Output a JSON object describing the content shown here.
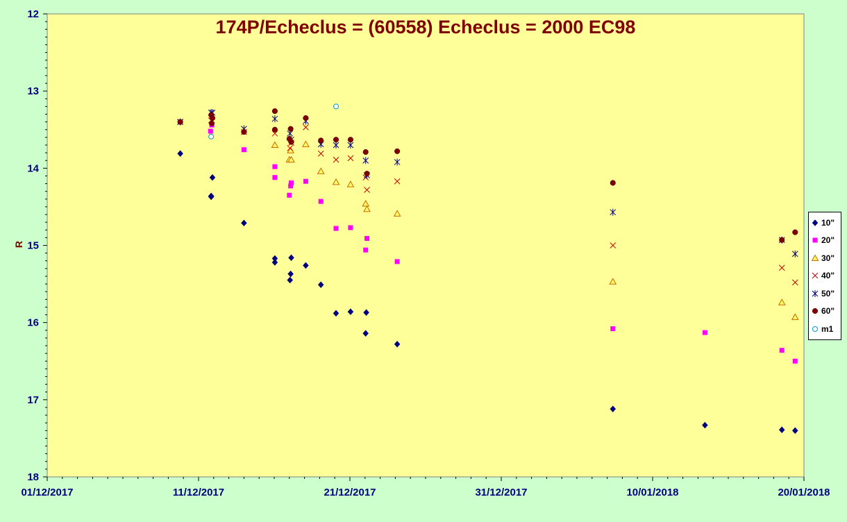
{
  "chart_data": {
    "type": "scatter",
    "title": "174P/Echeclus = (60558) Echeclus = 2000 EC98",
    "xlabel": "",
    "ylabel": "R",
    "x_axis": {
      "type": "date",
      "min": "2017-12-01",
      "max": "2018-01-20",
      "ticks": [
        "01/12/2017",
        "11/12/2017",
        "21/12/2017",
        "31/12/2017",
        "10/01/2018",
        "20/01/2018"
      ]
    },
    "y_axis": {
      "min": 12,
      "max": 18,
      "reversed": true,
      "ticks": [
        "12",
        "13",
        "14",
        "15",
        "16",
        "17",
        "18"
      ]
    },
    "grid": false,
    "legend_position": "right",
    "colors": {
      "plot_background": "#ffff99",
      "chart_background": "#ccffcc",
      "title": "#800000",
      "axis_text": "#000080"
    },
    "series": [
      {
        "name": "10\"",
        "marker": "diamond",
        "color": "#000080",
        "points": [
          [
            "2017-12-09 19:00",
            13.81
          ],
          [
            "2017-12-11 20:00",
            14.37
          ],
          [
            "2017-12-11 20:00",
            14.36
          ],
          [
            "2017-12-11 22:00",
            14.12
          ],
          [
            "2017-12-14 00:00",
            14.71
          ],
          [
            "2017-12-16 01:00",
            15.17
          ],
          [
            "2017-12-16 01:00",
            15.22
          ],
          [
            "2017-12-17 01:00",
            15.45
          ],
          [
            "2017-12-17 02:00",
            15.37
          ],
          [
            "2017-12-17 03:00",
            15.16
          ],
          [
            "2017-12-18 02:00",
            15.26
          ],
          [
            "2017-12-19 02:00",
            15.51
          ],
          [
            "2017-12-20 02:00",
            15.88
          ],
          [
            "2017-12-21 01:00",
            15.86
          ],
          [
            "2017-12-22 01:00",
            16.14
          ],
          [
            "2017-12-22 02:00",
            15.87
          ],
          [
            "2017-12-24 03:00",
            16.28
          ],
          [
            "2018-01-07 09:00",
            17.12
          ],
          [
            "2018-01-13 11:00",
            17.33
          ],
          [
            "2018-01-18 13:00",
            17.39
          ],
          [
            "2018-01-19 10:00",
            17.4
          ]
        ]
      },
      {
        "name": "20\"",
        "marker": "square",
        "color": "#ff00ff",
        "points": [
          [
            "2017-12-11 19:00",
            13.52
          ],
          [
            "2017-12-11 21:00",
            13.44
          ],
          [
            "2017-12-14 00:00",
            13.76
          ],
          [
            "2017-12-16 01:00",
            13.98
          ],
          [
            "2017-12-16 01:00",
            14.12
          ],
          [
            "2017-12-17 00:00",
            14.35
          ],
          [
            "2017-12-17 02:00",
            14.23
          ],
          [
            "2017-12-17 03:00",
            14.19
          ],
          [
            "2017-12-18 02:00",
            14.17
          ],
          [
            "2017-12-19 02:00",
            14.43
          ],
          [
            "2017-12-20 02:00",
            14.78
          ],
          [
            "2017-12-21 01:00",
            14.77
          ],
          [
            "2017-12-22 01:00",
            15.06
          ],
          [
            "2017-12-22 03:00",
            14.91
          ],
          [
            "2017-12-24 03:00",
            15.21
          ],
          [
            "2018-01-07 09:00",
            16.08
          ],
          [
            "2018-01-13 11:00",
            16.13
          ],
          [
            "2018-01-18 13:00",
            16.36
          ],
          [
            "2018-01-19 10:00",
            16.5
          ]
        ]
      },
      {
        "name": "30\"",
        "marker": "triangle",
        "color": "#ff9900",
        "points": [
          [
            "2017-12-16 01:00",
            13.7
          ],
          [
            "2017-12-17 00:00",
            13.89
          ],
          [
            "2017-12-17 02:00",
            13.77
          ],
          [
            "2017-12-17 03:00",
            13.89
          ],
          [
            "2017-12-18 02:00",
            13.69
          ],
          [
            "2017-12-19 02:00",
            14.04
          ],
          [
            "2017-12-20 02:00",
            14.18
          ],
          [
            "2017-12-21 01:00",
            14.21
          ],
          [
            "2017-12-22 01:00",
            14.46
          ],
          [
            "2017-12-22 03:00",
            14.53
          ],
          [
            "2017-12-24 03:00",
            14.59
          ],
          [
            "2018-01-07 09:00",
            15.47
          ],
          [
            "2018-01-18 13:00",
            15.74
          ],
          [
            "2018-01-19 10:00",
            15.93
          ]
        ]
      },
      {
        "name": "40\"",
        "marker": "x",
        "color": "#cc0000",
        "points": [
          [
            "2017-12-09 19:00",
            13.4
          ],
          [
            "2017-12-11 20:00",
            13.38
          ],
          [
            "2017-12-14 00:00",
            13.53
          ],
          [
            "2017-12-16 01:00",
            13.55
          ],
          [
            "2017-12-17 01:00",
            13.74
          ],
          [
            "2017-12-17 03:00",
            13.67
          ],
          [
            "2017-12-18 02:00",
            13.47
          ],
          [
            "2017-12-19 02:00",
            13.81
          ],
          [
            "2017-12-20 02:00",
            13.89
          ],
          [
            "2017-12-21 01:00",
            13.87
          ],
          [
            "2017-12-22 01:00",
            14.12
          ],
          [
            "2017-12-22 03:00",
            14.28
          ],
          [
            "2017-12-24 03:00",
            14.17
          ],
          [
            "2018-01-07 09:00",
            15.0
          ],
          [
            "2018-01-18 13:00",
            15.29
          ],
          [
            "2018-01-19 10:00",
            15.48
          ]
        ]
      },
      {
        "name": "50\"",
        "marker": "star",
        "color": "#000080",
        "points": [
          [
            "2017-12-09 19:00",
            13.4
          ],
          [
            "2017-12-11 20:00",
            13.28
          ],
          [
            "2017-12-11 22:00",
            13.28
          ],
          [
            "2017-12-14 00:00",
            13.49
          ],
          [
            "2017-12-16 01:00",
            13.36
          ],
          [
            "2017-12-17 01:00",
            13.55
          ],
          [
            "2017-12-17 03:00",
            13.63
          ],
          [
            "2017-12-18 02:00",
            13.39
          ],
          [
            "2017-12-19 02:00",
            13.69
          ],
          [
            "2017-12-20 02:00",
            13.7
          ],
          [
            "2017-12-21 01:00",
            13.7
          ],
          [
            "2017-12-22 01:00",
            13.9
          ],
          [
            "2017-12-22 03:00",
            14.09
          ],
          [
            "2017-12-24 03:00",
            13.92
          ],
          [
            "2018-01-07 09:00",
            14.57
          ],
          [
            "2018-01-18 13:00",
            14.93
          ],
          [
            "2018-01-19 10:00",
            15.11
          ]
        ]
      },
      {
        "name": "60\"",
        "marker": "circle",
        "color": "#800000",
        "points": [
          [
            "2017-12-09 19:00",
            13.4
          ],
          [
            "2017-12-11 20:00",
            13.31
          ],
          [
            "2017-12-11 21:00",
            13.42
          ],
          [
            "2017-12-11 22:00",
            13.35
          ],
          [
            "2017-12-14 00:00",
            13.53
          ],
          [
            "2017-12-16 01:00",
            13.26
          ],
          [
            "2017-12-16 01:00",
            13.5
          ],
          [
            "2017-12-17 00:00",
            13.62
          ],
          [
            "2017-12-17 02:00",
            13.49
          ],
          [
            "2017-12-17 03:00",
            13.66
          ],
          [
            "2017-12-18 02:00",
            13.35
          ],
          [
            "2017-12-19 02:00",
            13.64
          ],
          [
            "2017-12-20 02:00",
            13.63
          ],
          [
            "2017-12-21 01:00",
            13.63
          ],
          [
            "2017-12-22 01:00",
            13.79
          ],
          [
            "2017-12-22 03:00",
            14.07
          ],
          [
            "2017-12-24 03:00",
            13.78
          ],
          [
            "2018-01-07 09:00",
            14.19
          ],
          [
            "2018-01-18 13:00",
            14.93
          ],
          [
            "2018-01-19 10:00",
            14.83
          ]
        ]
      },
      {
        "name": "m1",
        "marker": "open-circle",
        "color": "#0099cc",
        "points": [
          [
            "2017-12-11 20:00",
            13.59
          ],
          [
            "2017-12-20 02:00",
            13.2
          ]
        ]
      }
    ]
  }
}
